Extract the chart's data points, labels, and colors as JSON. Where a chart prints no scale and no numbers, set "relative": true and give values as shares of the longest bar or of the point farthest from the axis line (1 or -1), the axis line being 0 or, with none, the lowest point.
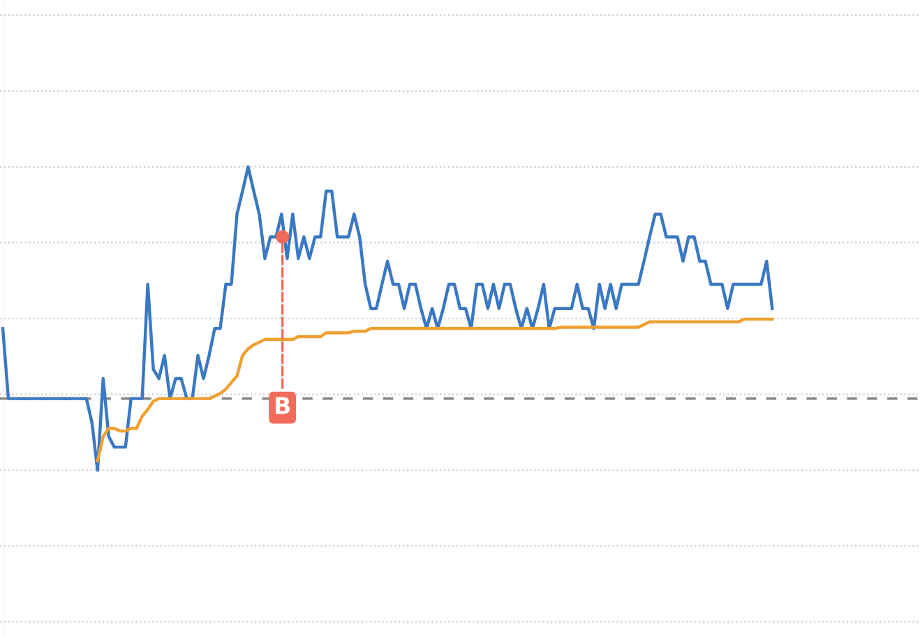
{
  "chart_data": {
    "type": "line",
    "relative": true,
    "grid": "y",
    "categories": [
      null,
      null,
      null,
      null,
      null,
      null,
      null,
      null,
      null,
      null,
      null,
      null,
      null,
      null,
      null,
      null,
      null,
      null,
      null,
      null,
      null,
      null,
      null,
      null,
      null,
      null,
      null,
      null,
      null,
      null,
      null,
      null,
      null,
      null,
      null,
      null,
      null,
      null,
      null,
      null,
      null,
      null,
      null,
      null,
      null,
      null,
      null,
      null,
      null,
      null,
      null,
      null,
      null,
      null,
      null,
      null,
      null,
      null,
      null,
      null,
      null,
      null,
      null,
      null,
      null,
      null,
      null,
      null,
      null,
      null,
      null,
      null,
      null,
      null,
      null,
      null,
      null,
      null,
      null,
      null,
      null,
      null,
      null,
      null,
      null,
      null,
      null,
      null,
      null,
      null,
      null,
      null,
      null,
      null,
      null,
      null,
      null,
      null,
      null,
      null,
      null,
      null,
      null,
      null,
      null,
      null,
      null,
      null,
      null,
      null,
      null,
      null,
      null,
      null,
      null,
      null,
      null,
      null,
      null,
      null,
      null,
      null,
      null,
      null,
      null,
      null,
      null,
      null,
      null,
      null,
      null,
      null,
      null,
      null,
      null,
      null,
      null,
      null,
      null,
      null,
      null,
      null,
      null,
      null,
      null,
      null,
      null,
      null,
      null,
      null,
      null,
      null,
      null,
      null,
      null,
      null,
      null,
      null,
      null,
      null,
      null,
      null,
      null,
      null,
      null
    ],
    "series": [
      {
        "color": "#3a78c3",
        "values": [
          0.467,
          0.236,
          0.236,
          0.236,
          0.236,
          0.236,
          0.236,
          0.236,
          0.236,
          0.236,
          0.236,
          0.236,
          0.236,
          0.236,
          0.236,
          0.236,
          0.156,
          0,
          0.302,
          0.111,
          0.076,
          0.076,
          0.076,
          0.236,
          0.236,
          0.236,
          0.613,
          0.333,
          0.302,
          0.378,
          0.236,
          0.302,
          0.302,
          0.236,
          0.236,
          0.378,
          0.302,
          0.378,
          0.467,
          0.467,
          0.613,
          0.613,
          0.844,
          0.92,
          1,
          0.92,
          0.844,
          0.698,
          0.769,
          0.769,
          0.844,
          0.698,
          0.844,
          0.698,
          0.769,
          0.698,
          0.769,
          0.769,
          0.92,
          0.92,
          0.769,
          0.769,
          0.769,
          0.844,
          0.769,
          0.613,
          0.533,
          0.533,
          0.613,
          0.689,
          0.613,
          0.613,
          0.533,
          0.613,
          0.613,
          0.533,
          0.467,
          0.533,
          0.467,
          0.533,
          0.613,
          0.613,
          0.533,
          0.533,
          0.467,
          0.613,
          0.613,
          0.533,
          0.613,
          0.533,
          0.613,
          0.613,
          0.533,
          0.467,
          0.533,
          0.467,
          0.533,
          0.613,
          0.467,
          0.533,
          0.533,
          0.533,
          0.533,
          0.613,
          0.533,
          0.533,
          0.467,
          0.613,
          0.533,
          0.613,
          0.533,
          0.613,
          0.613,
          0.613,
          0.613,
          0.689,
          0.769,
          0.844,
          0.844,
          0.769,
          0.769,
          0.769,
          0.689,
          0.769,
          0.769,
          0.689,
          0.689,
          0.613,
          0.613,
          0.613,
          0.533,
          0.613,
          0.613,
          0.613,
          0.613,
          0.613,
          0.613,
          0.689,
          0.533,
          null,
          null,
          null,
          null,
          null,
          null,
          null,
          null,
          null,
          null,
          null,
          null,
          null,
          null,
          null,
          null,
          null,
          null,
          null,
          null,
          null,
          null,
          null,
          null,
          null,
          null
        ]
      },
      {
        "color": "#f0a030",
        "values": [
          null,
          null,
          null,
          null,
          null,
          null,
          null,
          null,
          null,
          null,
          null,
          null,
          null,
          null,
          null,
          null,
          null,
          0.031,
          0.111,
          0.138,
          0.138,
          0.129,
          0.129,
          0.138,
          0.138,
          0.178,
          0.2,
          0.227,
          0.236,
          0.236,
          0.236,
          0.236,
          0.236,
          0.236,
          0.236,
          0.236,
          0.236,
          0.236,
          0.244,
          0.253,
          0.267,
          0.289,
          0.311,
          0.378,
          0.4,
          0.413,
          0.422,
          0.431,
          0.431,
          0.431,
          0.431,
          0.431,
          0.431,
          0.44,
          0.44,
          0.44,
          0.44,
          0.44,
          0.453,
          0.453,
          0.453,
          0.453,
          0.453,
          0.458,
          0.458,
          0.458,
          0.467,
          0.467,
          0.467,
          0.467,
          0.467,
          0.467,
          0.467,
          0.467,
          0.467,
          0.467,
          0.467,
          0.467,
          0.467,
          0.467,
          0.467,
          0.467,
          0.467,
          0.467,
          0.467,
          0.467,
          0.467,
          0.467,
          0.467,
          0.467,
          0.467,
          0.467,
          0.467,
          0.467,
          0.467,
          0.467,
          0.467,
          0.467,
          0.467,
          0.467,
          0.471,
          0.471,
          0.471,
          0.471,
          0.471,
          0.471,
          0.471,
          0.471,
          0.471,
          0.471,
          0.471,
          0.471,
          0.471,
          0.471,
          0.471,
          0.48,
          0.489,
          0.489,
          0.489,
          0.489,
          0.489,
          0.489,
          0.489,
          0.489,
          0.489,
          0.489,
          0.489,
          0.489,
          0.489,
          0.489,
          0.489,
          0.489,
          0.489,
          0.498,
          0.498,
          0.498,
          0.498,
          0.498,
          0.498,
          null,
          null,
          null,
          null,
          null,
          null,
          null,
          null,
          null,
          null,
          null,
          null,
          null,
          null,
          null,
          null,
          null,
          null,
          null,
          null,
          null,
          null,
          null,
          null,
          null,
          null
        ]
      }
    ],
    "ref_lines": [
      {
        "axis": "y",
        "value": 0.236,
        "color": "#888888",
        "line_style": "dashed"
      }
    ],
    "annotations": [
      {
        "text": "B",
        "y": 0.769
      }
    ]
  }
}
